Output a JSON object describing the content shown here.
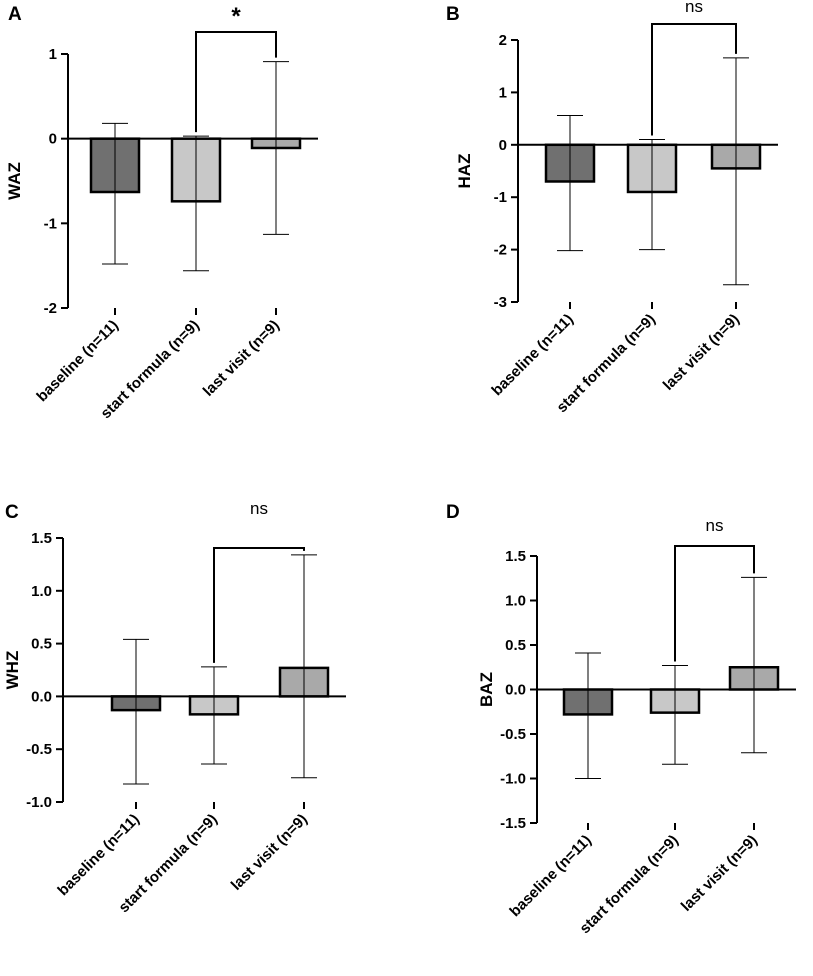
{
  "colors": {
    "baseline": "#707070",
    "start_formula": "#c8c8c8",
    "last_visit": "#a9a9a9",
    "stroke": "#000000"
  },
  "chart_data": [
    {
      "type": "bar",
      "panel": "A",
      "ylabel": "WAZ",
      "categories": [
        "baseline (n=11)",
        "start formula (n=9)",
        "last visit (n=9)"
      ],
      "values": [
        -0.63,
        -0.74,
        -0.11
      ],
      "error_low": [
        -1.48,
        -1.56,
        -1.13
      ],
      "error_high": [
        0.18,
        0.03,
        0.91
      ],
      "ylim": [
        -2,
        1
      ],
      "yticks": [
        -2,
        -1,
        0,
        1
      ],
      "ytick_labels": [
        "-2",
        "-1",
        "0",
        "1"
      ],
      "significance": {
        "from": 1,
        "to": 2,
        "label": "*"
      }
    },
    {
      "type": "bar",
      "panel": "B",
      "ylabel": "HAZ",
      "categories": [
        "baseline (n=11)",
        "start formula (n=9)",
        "last visit (n=9)"
      ],
      "values": [
        -0.7,
        -0.9,
        -0.45
      ],
      "error_low": [
        -2.02,
        -2.0,
        -2.67
      ],
      "error_high": [
        0.56,
        0.1,
        1.66
      ],
      "ylim": [
        -3,
        2
      ],
      "yticks": [
        -3,
        -2,
        -1,
        0,
        1,
        2
      ],
      "ytick_labels": [
        "-3",
        "-2",
        "-1",
        "0",
        "1",
        "2"
      ],
      "significance": {
        "from": 1,
        "to": 2,
        "label": "ns"
      }
    },
    {
      "type": "bar",
      "panel": "C",
      "ylabel": "WHZ",
      "categories": [
        "baseline (n=11)",
        "start formula (n=9)",
        "last visit (n=9)"
      ],
      "values": [
        -0.13,
        -0.17,
        0.27
      ],
      "error_low": [
        -0.83,
        -0.64,
        -0.77
      ],
      "error_high": [
        0.54,
        0.28,
        1.34
      ],
      "ylim": [
        -1.0,
        1.5
      ],
      "yticks": [
        -1.0,
        -0.5,
        0.0,
        0.5,
        1.0,
        1.5
      ],
      "ytick_labels": [
        "-1.0",
        "-0.5",
        "0.0",
        "0.5",
        "1.0",
        "1.5"
      ],
      "significance": {
        "from": 1,
        "to": 2,
        "label": "ns"
      }
    },
    {
      "type": "bar",
      "panel": "D",
      "ylabel": "BAZ",
      "categories": [
        "baseline (n=11)",
        "start formula (n=9)",
        "last visit (n=9)"
      ],
      "values": [
        -0.28,
        -0.26,
        0.25
      ],
      "error_low": [
        -1.0,
        -0.84,
        -0.71
      ],
      "error_high": [
        0.41,
        0.27,
        1.26
      ],
      "ylim": [
        -1.5,
        1.5
      ],
      "yticks": [
        -1.5,
        -1.0,
        -0.5,
        0.0,
        0.5,
        1.0,
        1.5
      ],
      "ytick_labels": [
        "-1.5",
        "-1.0",
        "-0.5",
        "0.0",
        "0.5",
        "1.0",
        "1.5"
      ],
      "significance": {
        "from": 1,
        "to": 2,
        "label": "ns"
      }
    }
  ]
}
